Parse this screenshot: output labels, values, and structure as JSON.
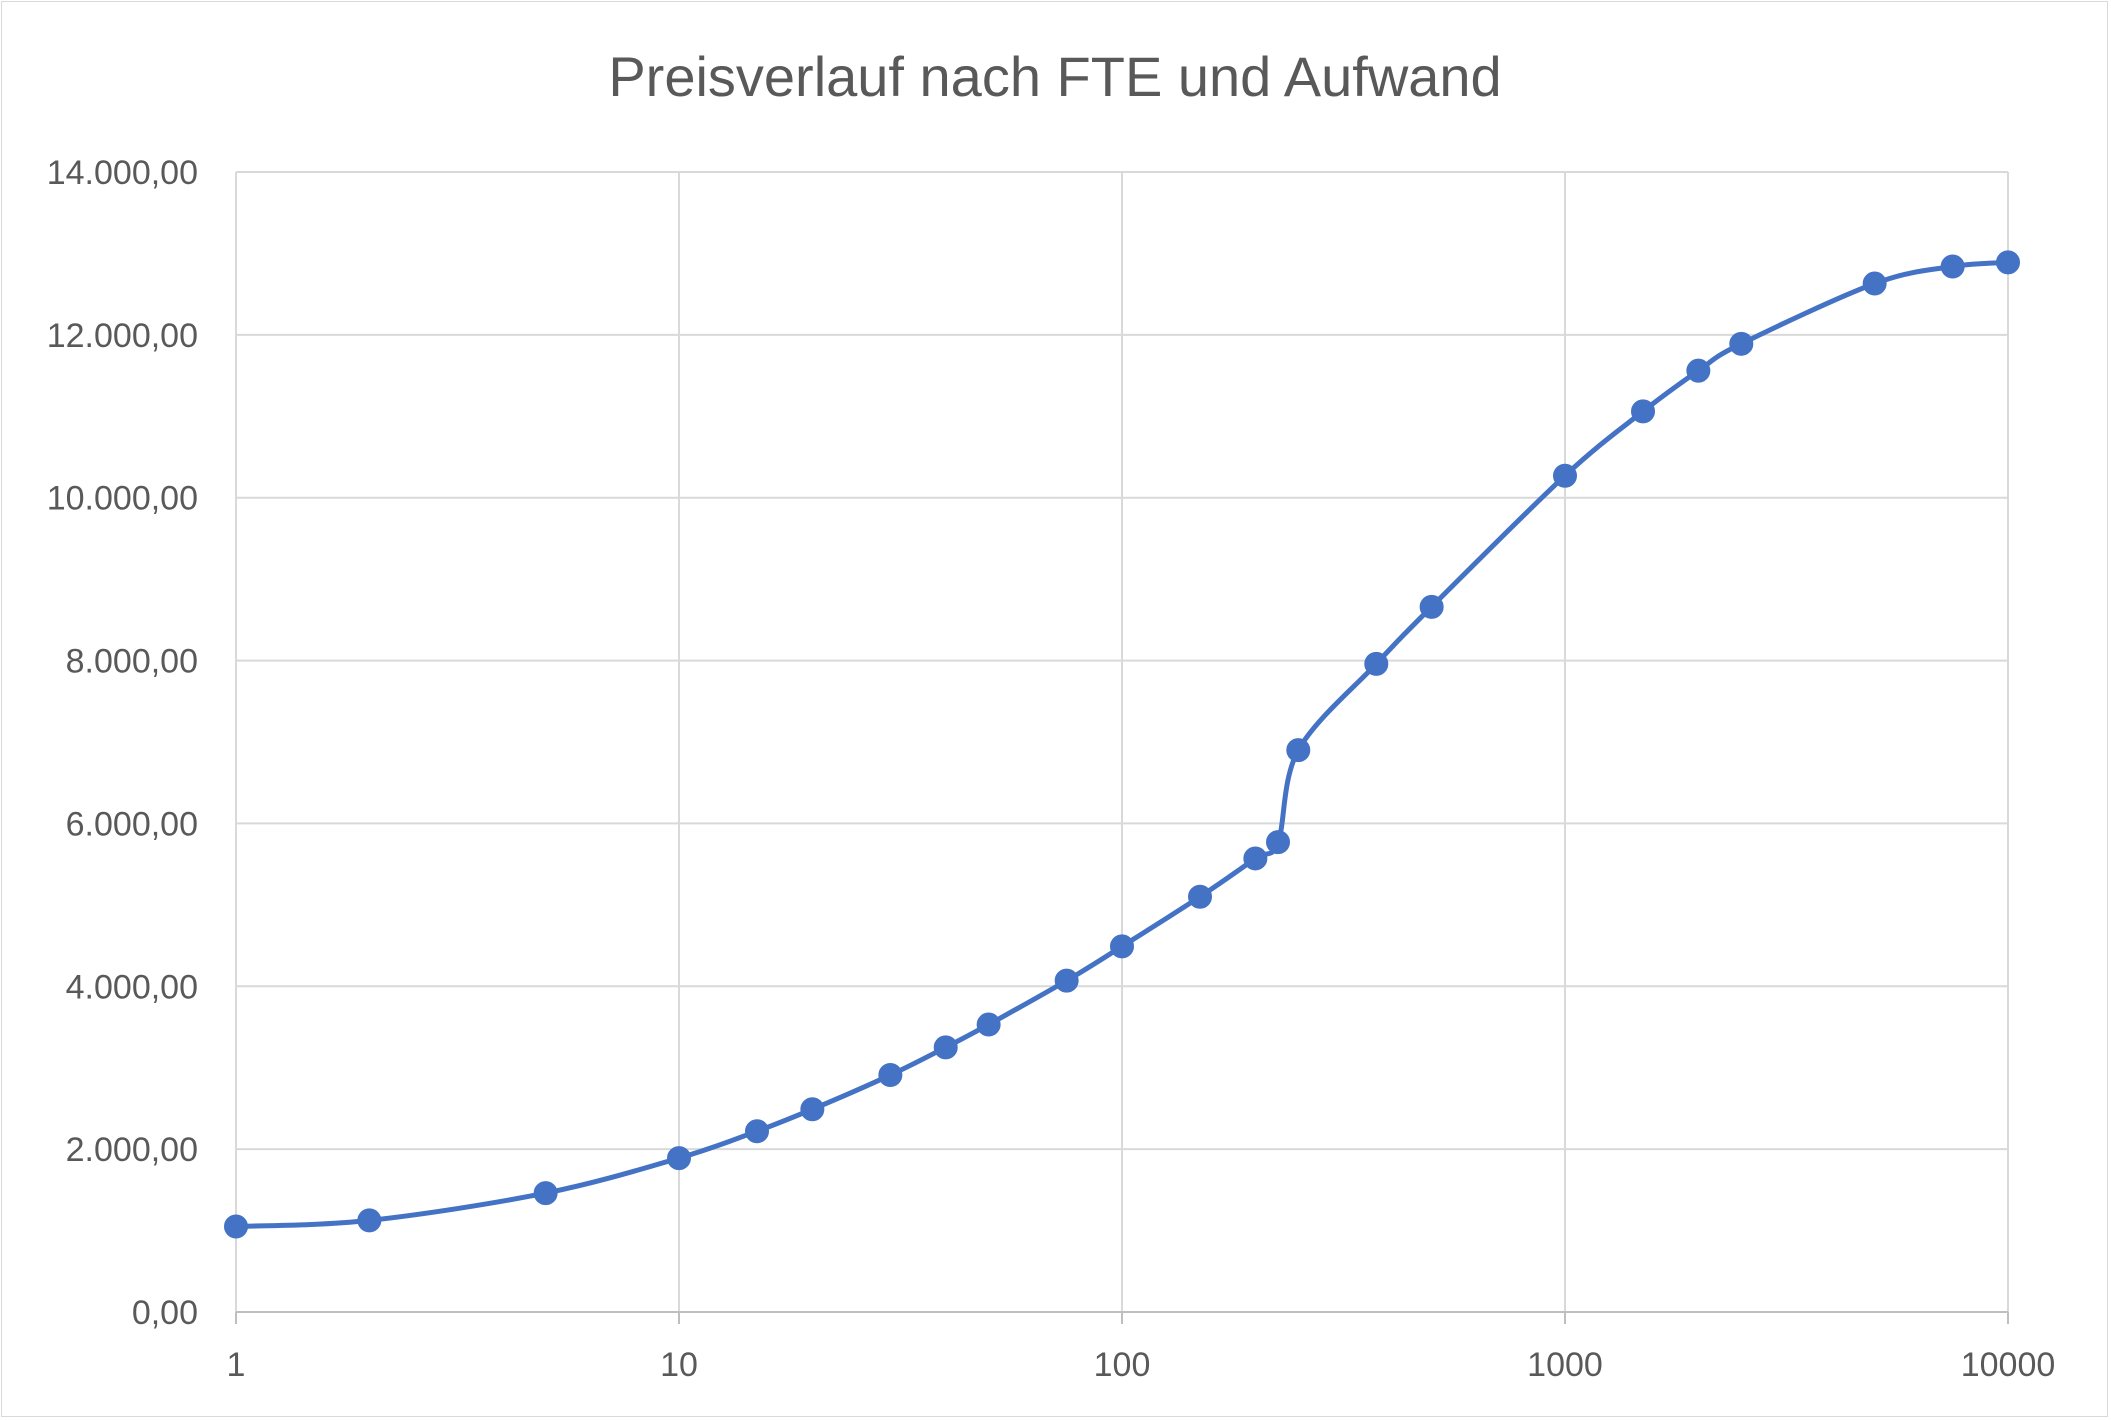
{
  "chart_data": {
    "type": "scatter",
    "title": "Preisverlauf nach FTE und Aufwand",
    "xlabel": "",
    "ylabel": "",
    "xscale": "log",
    "xlim": [
      1,
      10000
    ],
    "ylim": [
      0,
      14000
    ],
    "grid": true,
    "legend": "none",
    "line": "smooth",
    "marker": "circle",
    "colors": {
      "series": "#4472c4",
      "grid": "#d9d9d9",
      "text": "#595959"
    },
    "x_ticks": [
      "1",
      "10",
      "100",
      "1000",
      "10000"
    ],
    "x_tick_values": [
      1,
      10,
      100,
      1000,
      10000
    ],
    "y_ticks": [
      "0,00",
      "2.000,00",
      "4.000,00",
      "6.000,00",
      "8.000,00",
      "10.000,00",
      "12.000,00",
      "14.000,00"
    ],
    "y_tick_values": [
      0,
      2000,
      4000,
      6000,
      8000,
      10000,
      12000,
      14000
    ],
    "series": [
      {
        "x": [
          1,
          2,
          5,
          10,
          15,
          20,
          30,
          40,
          50,
          75,
          100,
          150,
          200,
          225,
          250,
          375,
          500,
          1000,
          1500,
          2000,
          2500,
          5000,
          7500,
          10000
        ],
        "y": [
          1050,
          1125,
          1460,
          1890,
          2220,
          2490,
          2910,
          3250,
          3530,
          4070,
          4490,
          5100,
          5570,
          5770,
          6900,
          7960,
          8660,
          10270,
          11060,
          11560,
          11890,
          12630,
          12840,
          12890
        ]
      }
    ]
  }
}
